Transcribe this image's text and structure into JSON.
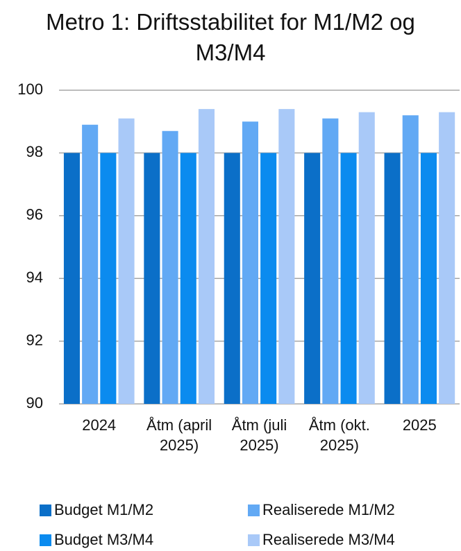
{
  "chart_data": {
    "type": "bar",
    "title": "Metro 1: Driftsstabilitet for M1/M2 og M3/M4",
    "categories": [
      "2024",
      "Åtm (april 2025)",
      "Åtm (juli 2025)",
      "Åtm (okt. 2025)",
      "2025"
    ],
    "series": [
      {
        "name": "Budget M1/M2",
        "color": "#0b6fc8",
        "values": [
          98,
          98,
          98,
          98,
          98
        ]
      },
      {
        "name": "Realiserede M1/M2",
        "color": "#62a9f4",
        "values": [
          98.9,
          98.7,
          99.0,
          99.1,
          99.2
        ]
      },
      {
        "name": "Budget M3/M4",
        "color": "#0b8bef",
        "values": [
          98,
          98,
          98,
          98,
          98
        ]
      },
      {
        "name": "Realiserede M3/M4",
        "color": "#a9c9f8",
        "values": [
          99.1,
          99.4,
          99.4,
          99.3,
          99.3
        ]
      }
    ],
    "ylim": [
      90,
      100
    ],
    "yticks": [
      90,
      92,
      94,
      96,
      98,
      100
    ],
    "grid": true,
    "legend": "bottom"
  }
}
